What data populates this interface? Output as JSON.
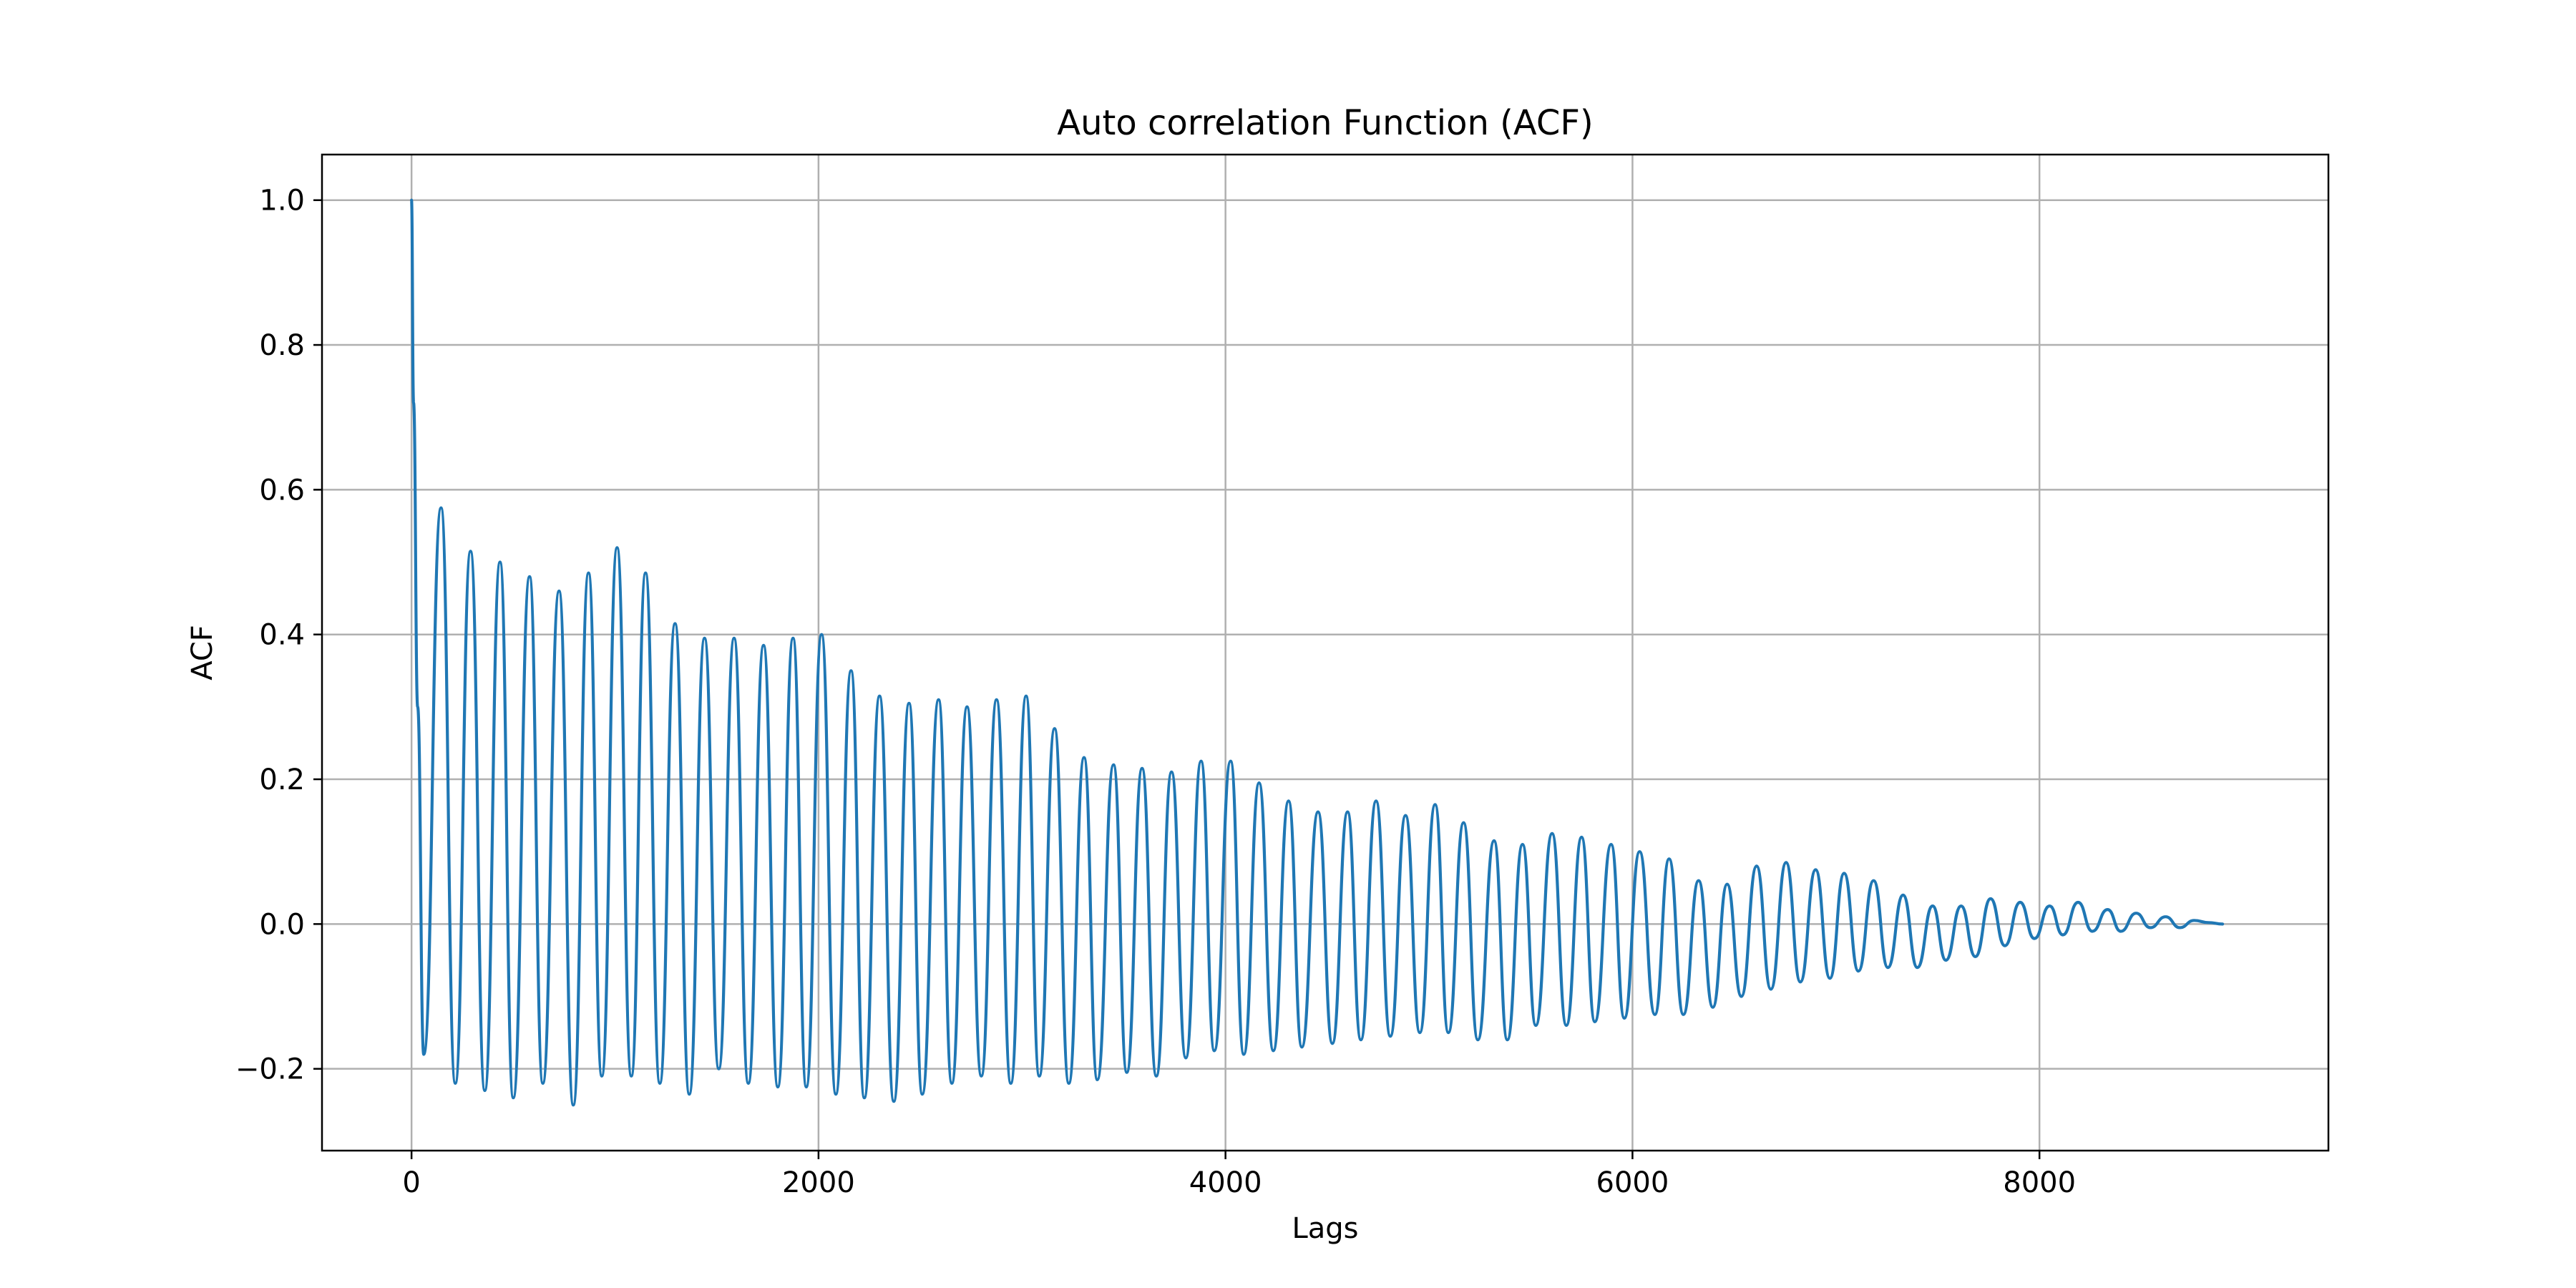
{
  "chart_data": {
    "type": "line",
    "title": "Auto correlation Function (ACF)",
    "xlabel": "Lags",
    "ylabel": "ACF",
    "xlim": [
      -440,
      9420
    ],
    "ylim": [
      -0.313,
      1.063
    ],
    "xticks": [
      0,
      2000,
      4000,
      6000,
      8000
    ],
    "xtick_labels": [
      "0",
      "2000",
      "4000",
      "6000",
      "8000"
    ],
    "yticks": [
      -0.2,
      0.0,
      0.2,
      0.4,
      0.6,
      0.8,
      1.0
    ],
    "ytick_labels": [
      "−0.2",
      "0.0",
      "0.2",
      "0.4",
      "0.6",
      "0.8",
      "1.0"
    ],
    "grid": true,
    "legend": "none",
    "line_color": "#1f77b4",
    "series": [
      {
        "x": [
          0,
          10,
          30,
          60,
          145,
          215,
          290,
          360,
          435,
          500,
          580,
          645,
          725,
          795,
          870,
          935,
          1010,
          1080,
          1150,
          1220,
          1295,
          1365,
          1440,
          1510,
          1585,
          1655,
          1730,
          1800,
          1875,
          1940,
          2015,
          2085,
          2160,
          2225,
          2300,
          2370,
          2445,
          2510,
          2590,
          2655,
          2730,
          2800,
          2875,
          2945,
          3020,
          3085,
          3160,
          3230,
          3305,
          3370,
          3450,
          3515,
          3590,
          3660,
          3735,
          3805,
          3880,
          3945,
          4025,
          4090,
          4165,
          4235,
          4310,
          4375,
          4455,
          4525,
          4600,
          4665,
          4740,
          4810,
          4885,
          4955,
          5030,
          5095,
          5170,
          5240,
          5320,
          5385,
          5460,
          5525,
          5605,
          5675,
          5750,
          5815,
          5895,
          5960,
          6035,
          6110,
          6180,
          6250,
          6325,
          6395,
          6465,
          6535,
          6610,
          6680,
          6755,
          6825,
          6900,
          6970,
          7040,
          7110,
          7185,
          7255,
          7330,
          7400,
          7475,
          7540,
          7615,
          7685,
          7760,
          7830,
          7905,
          7975,
          8050,
          8115,
          8190,
          8260,
          8335,
          8400,
          8475,
          8545,
          8620,
          8690,
          8760,
          8830,
          8900
        ],
        "y": [
          1.0,
          0.72,
          0.3,
          -0.18,
          0.575,
          -0.22,
          0.515,
          -0.23,
          0.5,
          -0.24,
          0.48,
          -0.22,
          0.46,
          -0.25,
          0.485,
          -0.21,
          0.52,
          -0.21,
          0.485,
          -0.22,
          0.415,
          -0.235,
          0.395,
          -0.2,
          0.395,
          -0.22,
          0.385,
          -0.225,
          0.395,
          -0.225,
          0.4,
          -0.235,
          0.35,
          -0.24,
          0.315,
          -0.245,
          0.305,
          -0.235,
          0.31,
          -0.22,
          0.3,
          -0.21,
          0.31,
          -0.22,
          0.315,
          -0.21,
          0.27,
          -0.22,
          0.23,
          -0.215,
          0.22,
          -0.205,
          0.215,
          -0.21,
          0.21,
          -0.185,
          0.225,
          -0.175,
          0.225,
          -0.18,
          0.195,
          -0.175,
          0.17,
          -0.17,
          0.155,
          -0.165,
          0.155,
          -0.16,
          0.17,
          -0.155,
          0.15,
          -0.15,
          0.165,
          -0.15,
          0.14,
          -0.16,
          0.115,
          -0.16,
          0.11,
          -0.14,
          0.125,
          -0.14,
          0.12,
          -0.135,
          0.11,
          -0.13,
          0.1,
          -0.125,
          0.09,
          -0.125,
          0.06,
          -0.115,
          0.055,
          -0.1,
          0.08,
          -0.09,
          0.085,
          -0.08,
          0.075,
          -0.075,
          0.07,
          -0.065,
          0.06,
          -0.06,
          0.04,
          -0.06,
          0.025,
          -0.05,
          0.025,
          -0.045,
          0.035,
          -0.03,
          0.03,
          -0.02,
          0.025,
          -0.015,
          0.03,
          -0.01,
          0.02,
          -0.01,
          0.015,
          -0.005,
          0.01,
          -0.005,
          0.005,
          0.002,
          0.0
        ]
      }
    ]
  }
}
